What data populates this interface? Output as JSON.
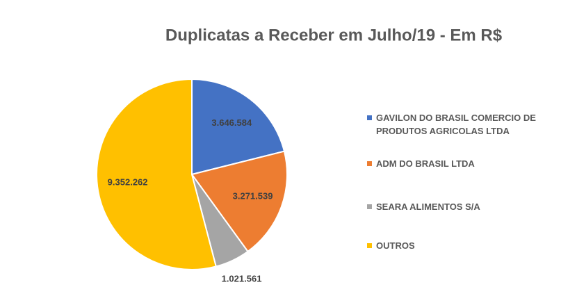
{
  "chart_data": {
    "type": "pie",
    "title": "Duplicatas a Receber em Julho/19 - Em R$",
    "categories": [
      "GAVILON DO BRASIL COMERCIO DE PRODUTOS AGRICOLAS LTDA",
      "ADM DO BRASIL LTDA",
      "SEARA ALIMENTOS S/A",
      "OUTROS"
    ],
    "values": [
      3646584,
      3271539,
      1021561,
      9352262
    ],
    "value_labels": [
      "3.646.584",
      "3.271.539",
      "1.021.561",
      "9.352.262"
    ],
    "colors": [
      "#4472c4",
      "#ed7d31",
      "#a5a5a5",
      "#ffc000"
    ],
    "legend": "right"
  }
}
